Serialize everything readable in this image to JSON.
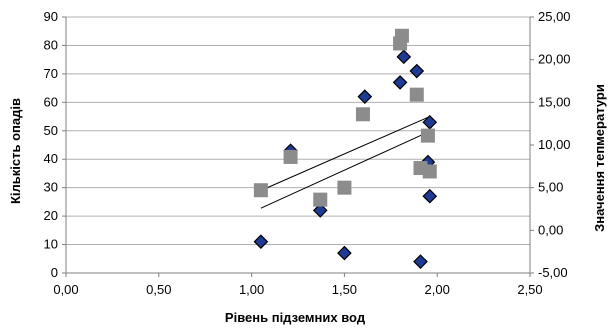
{
  "chart_data": {
    "type": "scatter",
    "title": "",
    "xlabel": "Рівень підземних вод",
    "ylabel_left": "Кількість опадів",
    "ylabel_right": "Значення тепмератури",
    "xlim": [
      0,
      2.5
    ],
    "ylim_left": [
      0,
      90
    ],
    "ylim_right": [
      -5,
      25
    ],
    "x_ticks": [
      "0,00",
      "0,50",
      "1,00",
      "1,50",
      "2,00",
      "2,50"
    ],
    "y_left_ticks": [
      "0",
      "10",
      "20",
      "30",
      "40",
      "50",
      "60",
      "70",
      "80",
      "90"
    ],
    "y_right_ticks": [
      "-5,00",
      "0,00",
      "5,00",
      "10,00",
      "15,00",
      "20,00",
      "25,00"
    ],
    "grid": true,
    "series": [
      {
        "axis": "left",
        "marker": "diamond",
        "color": "#1f3a93",
        "points": [
          {
            "x": 1.05,
            "y": 11
          },
          {
            "x": 1.21,
            "y": 43
          },
          {
            "x": 1.37,
            "y": 22
          },
          {
            "x": 1.5,
            "y": 7
          },
          {
            "x": 1.61,
            "y": 62
          },
          {
            "x": 1.8,
            "y": 67
          },
          {
            "x": 1.82,
            "y": 76
          },
          {
            "x": 1.89,
            "y": 71
          },
          {
            "x": 1.91,
            "y": 4
          },
          {
            "x": 1.95,
            "y": 39
          },
          {
            "x": 1.96,
            "y": 53
          },
          {
            "x": 1.96,
            "y": 27
          }
        ],
        "trend": [
          {
            "x": 1.05,
            "y": 29
          },
          {
            "x": 1.96,
            "y": 55
          }
        ]
      },
      {
        "axis": "right",
        "marker": "square",
        "color": "#8c8c8c",
        "points": [
          {
            "x": 1.05,
            "y": 4.7
          },
          {
            "x": 1.21,
            "y": 8.6
          },
          {
            "x": 1.37,
            "y": 3.6
          },
          {
            "x": 1.5,
            "y": 5.0
          },
          {
            "x": 1.6,
            "y": 13.6
          },
          {
            "x": 1.8,
            "y": 21.9
          },
          {
            "x": 1.81,
            "y": 22.8
          },
          {
            "x": 1.89,
            "y": 15.9
          },
          {
            "x": 1.91,
            "y": 7.3
          },
          {
            "x": 1.95,
            "y": 11.1
          },
          {
            "x": 1.96,
            "y": 6.9
          }
        ],
        "trend": [
          {
            "x": 1.05,
            "y": 2.6
          },
          {
            "x": 1.96,
            "y": 11.6
          }
        ]
      }
    ]
  }
}
